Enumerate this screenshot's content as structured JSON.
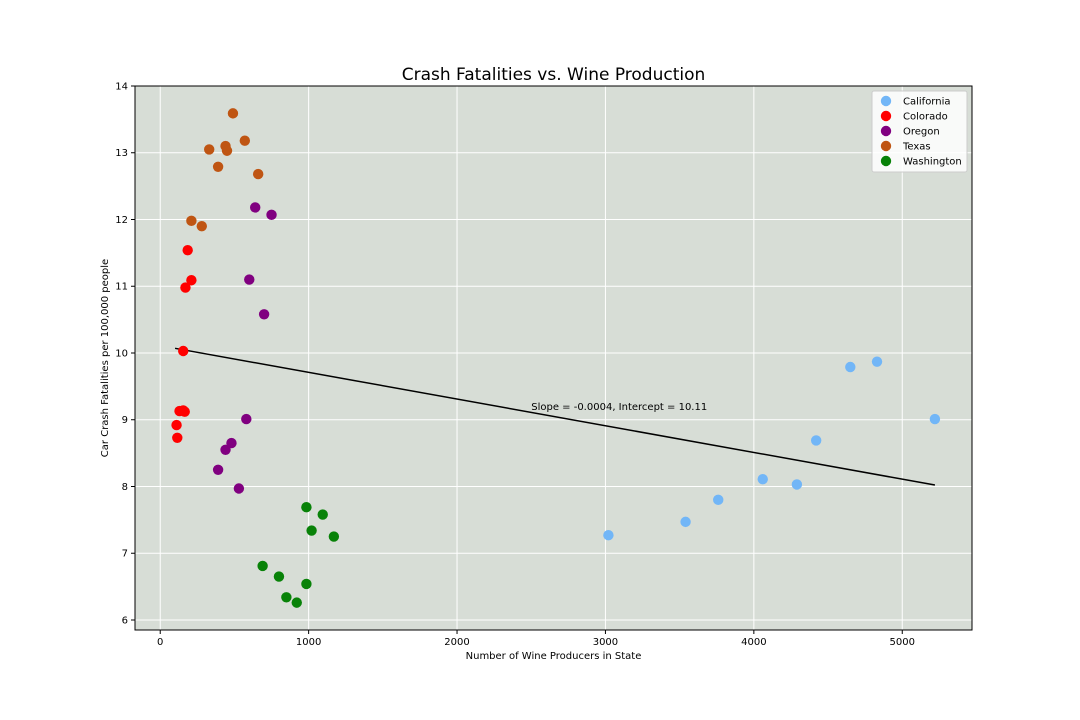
{
  "chart_data": {
    "type": "scatter",
    "title": "Crash Fatalities vs. Wine Production",
    "xlabel": "Number of Wine Producers in State",
    "ylabel": "Car Crash Fatalities per 100,000 people",
    "xlim": [
      -170,
      5470
    ],
    "ylim": [
      5.85,
      14.0
    ],
    "xticks": [
      0,
      1000,
      2000,
      3000,
      4000,
      5000
    ],
    "yticks": [
      6,
      7,
      8,
      9,
      10,
      11,
      12,
      13,
      14
    ],
    "grid": true,
    "background": "#d7ddd6",
    "legend_position": "top-right",
    "series": [
      {
        "name": "California",
        "color": "#72b6f7",
        "points": [
          [
            3020,
            7.27
          ],
          [
            3540,
            7.47
          ],
          [
            3760,
            7.8
          ],
          [
            4060,
            8.11
          ],
          [
            4290,
            8.03
          ],
          [
            4420,
            8.69
          ],
          [
            4650,
            9.79
          ],
          [
            4830,
            9.87
          ],
          [
            5220,
            9.01
          ]
        ]
      },
      {
        "name": "Colorado",
        "color": "#ff0000",
        "points": [
          [
            110,
            8.92
          ],
          [
            115,
            8.73
          ],
          [
            130,
            9.13
          ],
          [
            155,
            9.14
          ],
          [
            165,
            9.12
          ],
          [
            155,
            10.03
          ],
          [
            170,
            10.98
          ],
          [
            185,
            11.54
          ],
          [
            210,
            11.09
          ]
        ]
      },
      {
        "name": "Oregon",
        "color": "#800080",
        "points": [
          [
            390,
            8.25
          ],
          [
            440,
            8.55
          ],
          [
            480,
            8.65
          ],
          [
            530,
            7.97
          ],
          [
            580,
            9.01
          ],
          [
            600,
            11.1
          ],
          [
            640,
            12.18
          ],
          [
            700,
            10.58
          ],
          [
            750,
            12.07
          ]
        ]
      },
      {
        "name": "Texas",
        "color": "#bf5513",
        "points": [
          [
            210,
            11.98
          ],
          [
            280,
            11.9
          ],
          [
            330,
            13.05
          ],
          [
            390,
            12.79
          ],
          [
            440,
            13.1
          ],
          [
            450,
            13.03
          ],
          [
            490,
            13.59
          ],
          [
            570,
            13.18
          ],
          [
            660,
            12.68
          ]
        ]
      },
      {
        "name": "Washington",
        "color": "#088208",
        "points": [
          [
            690,
            6.81
          ],
          [
            800,
            6.65
          ],
          [
            850,
            6.34
          ],
          [
            920,
            6.26
          ],
          [
            985,
            6.54
          ],
          [
            985,
            7.69
          ],
          [
            1020,
            7.34
          ],
          [
            1095,
            7.58
          ],
          [
            1170,
            7.25
          ]
        ]
      }
    ],
    "regression": {
      "slope": -0.0004,
      "intercept": 10.11,
      "x_start": 100,
      "x_end": 5220,
      "color": "#000000"
    },
    "annotation": {
      "text": "Slope = -0.0004, Intercept = 10.11",
      "x": 2500,
      "y": 9.2
    }
  }
}
